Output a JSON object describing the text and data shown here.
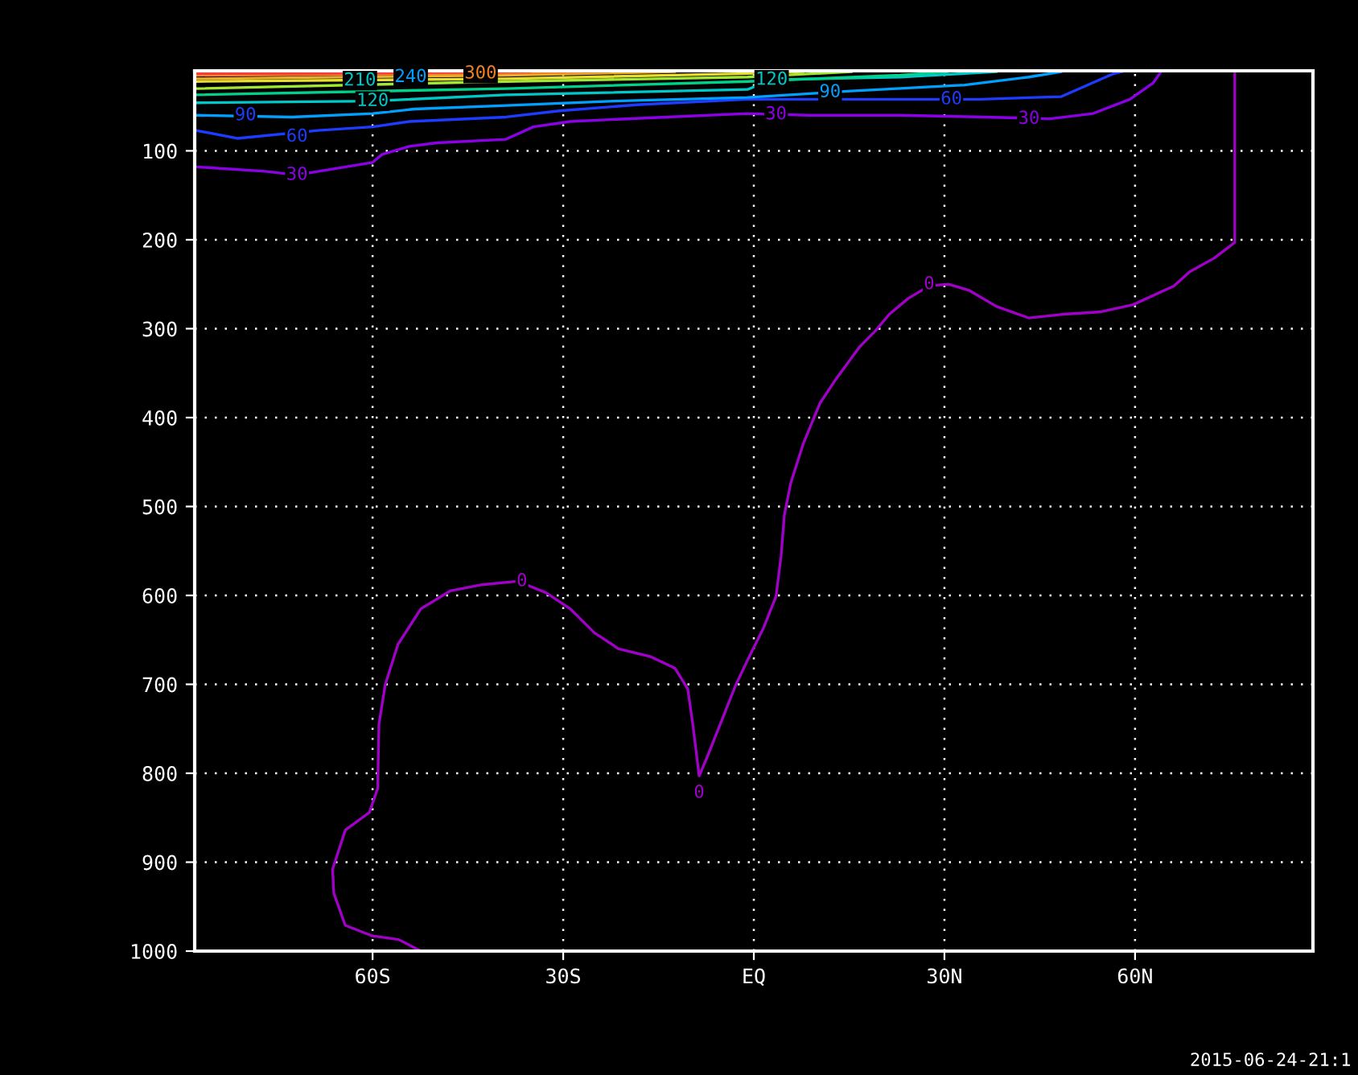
{
  "chart_data": {
    "type": "line",
    "xlim": [
      -88,
      88
    ],
    "ylim": [
      1000,
      10
    ],
    "xticks": [
      {
        "value": -60,
        "label": "60S"
      },
      {
        "value": -30,
        "label": "30S"
      },
      {
        "value": 0,
        "label": "EQ"
      },
      {
        "value": 30,
        "label": "30N"
      },
      {
        "value": 60,
        "label": "60N"
      }
    ],
    "yticks": [
      100,
      200,
      300,
      400,
      500,
      600,
      700,
      800,
      900,
      1000
    ],
    "grid": true,
    "line_style": "solid",
    "series": [
      {
        "color": "#a000c8",
        "x": [
          -52.4,
          -55.9,
          -60,
          -64.3,
          -66.1,
          -66.3,
          -64.3,
          -60.5,
          -59.2,
          -59,
          -58,
          -56,
          -52.4,
          -47.8,
          -42.8,
          -37.2,
          -32.7,
          -28.9,
          -25.1,
          -21.3,
          -16.2,
          -12.4,
          -10.4,
          -9.6,
          -8.6,
          -7.3,
          -4.8,
          -2.8,
          -1,
          1.5,
          3.5,
          4.3,
          4.8,
          5.8,
          7.8,
          10.4,
          12.9,
          16.7,
          19.2,
          21.3,
          24.3,
          27.6,
          30.6,
          33.9,
          38.2,
          43.3,
          48.4,
          54.7,
          59.7,
          66.1,
          68.6,
          72.4,
          75.7,
          75.7,
          75.7
        ],
        "values": [
          1000,
          987,
          983,
          971,
          935,
          908,
          864,
          844,
          817,
          745,
          700,
          655,
          615,
          595,
          588,
          584,
          597,
          615,
          642,
          660,
          669,
          682,
          705,
          745,
          803,
          781,
          736,
          700,
          673,
          637,
          601,
          555,
          510,
          474,
          429,
          384,
          357,
          320,
          302,
          284,
          266,
          252,
          250,
          257,
          275,
          288,
          284,
          281,
          273,
          252,
          236,
          221,
          203,
          113,
          12
        ]
      },
      {
        "color": "#8c00e6",
        "x": [
          -87.8,
          -77,
          -71.9,
          -60,
          -58.5,
          -54.2,
          -49.9,
          -39,
          -34.7,
          -28.9,
          -13.7,
          -1,
          8.6,
          23,
          36.5,
          46.6,
          53.4,
          59.2,
          62.8,
          64.1
        ],
        "values": [
          118,
          123,
          127,
          113,
          104,
          95,
          91,
          87,
          73,
          67,
          62,
          58,
          60,
          60,
          62,
          64,
          58,
          42,
          24,
          11
        ]
      },
      {
        "color": "#1e3cff",
        "x": [
          -87.8,
          -81.3,
          -68.6,
          -60,
          -54.2,
          -39,
          -30.6,
          -18,
          -1,
          14.7,
          31.1,
          35.7,
          48.4,
          56.7,
          58
        ],
        "values": [
          77,
          86,
          77,
          73,
          67,
          62,
          55,
          48,
          42,
          42,
          42,
          42,
          39,
          13,
          11
        ]
      },
      {
        "color": "#00a0ff",
        "x": [
          -87.8,
          -72.7,
          -60,
          -53.4,
          -39,
          -22,
          -1,
          14.7,
          33.2,
          43.3,
          48.4
        ],
        "values": [
          60,
          62,
          58,
          53,
          49,
          44,
          40,
          33,
          26,
          17,
          11
        ]
      },
      {
        "color": "#00c8c8",
        "x": [
          -87.8,
          -60,
          -39,
          -1,
          2.8,
          23,
          38.2
        ],
        "values": [
          46,
          44,
          37,
          31,
          20,
          17,
          11
        ]
      },
      {
        "color": "#00d28c",
        "x": [
          -87.8,
          -39,
          -1,
          23,
          30.6
        ],
        "values": [
          37,
          30,
          22,
          15,
          11
        ]
      },
      {
        "color": "#a0e632",
        "x": [
          -87.8,
          -39,
          -1,
          15.4
        ],
        "values": [
          30,
          22,
          17,
          11
        ]
      },
      {
        "color": "#e6dc32",
        "x": [
          -87.8,
          -39,
          -1,
          7.8
        ],
        "values": [
          22,
          19,
          13,
          11
        ]
      },
      {
        "color": "#e6af2d",
        "x": [
          -87.8,
          -39,
          -12.4
        ],
        "values": [
          19,
          15,
          11
        ]
      },
      {
        "color": "#f08228",
        "x": [
          -87.8,
          -43,
          -22.8
        ],
        "values": [
          15,
          13,
          11
        ]
      },
      {
        "color": "#fa3c3c",
        "x": [
          -87.8,
          -70,
          -35.2
        ],
        "values": [
          13,
          13,
          11
        ]
      }
    ],
    "annotations": [
      {
        "text": "0",
        "x": 27.6,
        "y": 250
      },
      {
        "text": "0",
        "x": -36.5,
        "y": 584
      },
      {
        "text": "0",
        "x": -8.6,
        "y": 822
      },
      {
        "text": "30",
        "x": -71.9,
        "y": 127
      },
      {
        "text": "30",
        "x": 3.5,
        "y": 59
      },
      {
        "text": "30",
        "x": 43.3,
        "y": 64
      },
      {
        "text": "60",
        "x": -71.9,
        "y": 84
      },
      {
        "text": "60",
        "x": 31.1,
        "y": 42
      },
      {
        "text": "90",
        "x": -80,
        "y": 60
      },
      {
        "text": "90",
        "x": 12,
        "y": 34
      },
      {
        "text": "120",
        "x": -60,
        "y": 44
      },
      {
        "text": "120",
        "x": 2.8,
        "y": 20
      },
      {
        "text": "210",
        "x": -62,
        "y": 21
      },
      {
        "text": "240",
        "x": -54,
        "y": 17
      },
      {
        "text": "300",
        "x": -43,
        "y": 13
      },
      "2015-06-24-21:1"
    ]
  }
}
